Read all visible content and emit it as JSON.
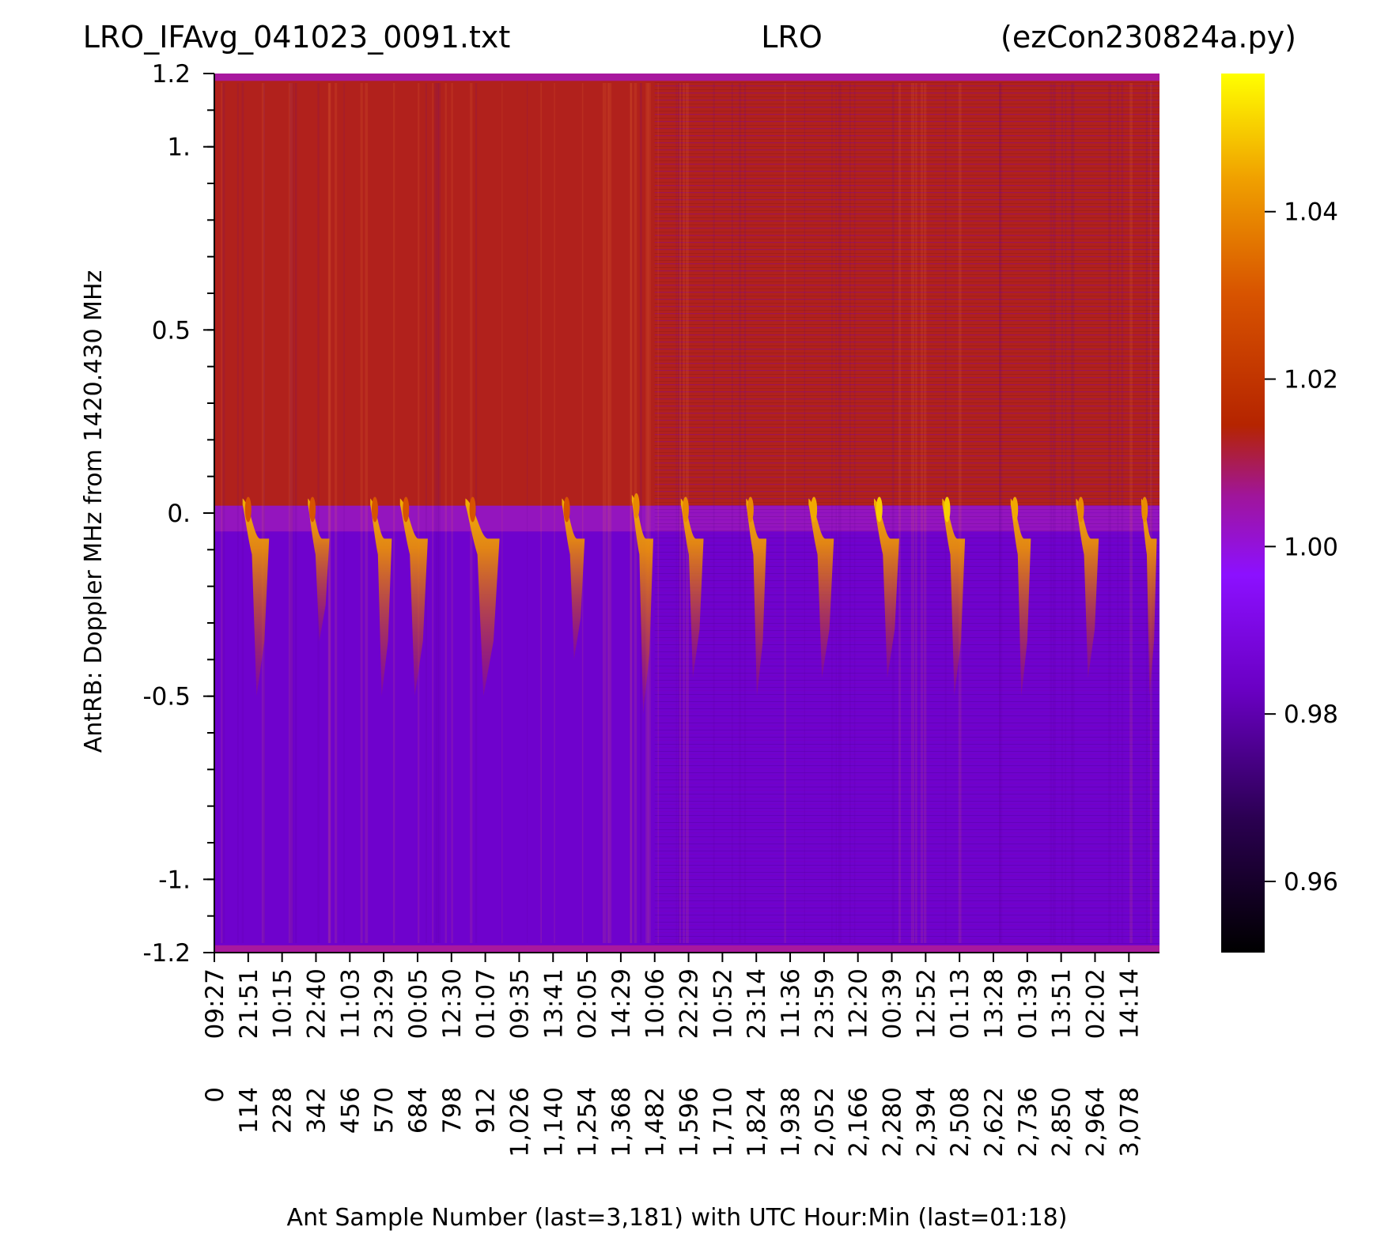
{
  "chart_data": {
    "type": "heatmap",
    "title": {
      "left": "LRO_IFAvg_041023_0091.txt",
      "center": "LRO",
      "right": "(ezCon230824a.py)"
    },
    "xlabel": "Ant Sample Number (last=3,181) with UTC Hour:Min (last=01:18)",
    "ylabel": "AntRB:  Doppler MHz from 1420.430 MHz",
    "xlim": [
      0,
      3181
    ],
    "ylim": [
      -1.2,
      1.2
    ],
    "x_ticks": [
      {
        "sample": "0",
        "time": "09:27"
      },
      {
        "sample": "114",
        "time": "21:51"
      },
      {
        "sample": "228",
        "time": "10:15"
      },
      {
        "sample": "342",
        "time": "22:40"
      },
      {
        "sample": "456",
        "time": "11:03"
      },
      {
        "sample": "570",
        "time": "23:29"
      },
      {
        "sample": "684",
        "time": "00:05"
      },
      {
        "sample": "798",
        "time": "12:30"
      },
      {
        "sample": "912",
        "time": "01:07"
      },
      {
        "sample": "1,026",
        "time": "09:35"
      },
      {
        "sample": "1,140",
        "time": "13:41"
      },
      {
        "sample": "1,254",
        "time": "02:05"
      },
      {
        "sample": "1,368",
        "time": "14:29"
      },
      {
        "sample": "1,482",
        "time": "10:06"
      },
      {
        "sample": "1,596",
        "time": "22:29"
      },
      {
        "sample": "1,710",
        "time": "10:52"
      },
      {
        "sample": "1,824",
        "time": "23:14"
      },
      {
        "sample": "1,938",
        "time": "11:36"
      },
      {
        "sample": "2,052",
        "time": "23:59"
      },
      {
        "sample": "2,166",
        "time": "12:20"
      },
      {
        "sample": "2,280",
        "time": "00:39"
      },
      {
        "sample": "2,394",
        "time": "12:52"
      },
      {
        "sample": "2,508",
        "time": "01:13"
      },
      {
        "sample": "2,622",
        "time": "13:28"
      },
      {
        "sample": "2,736",
        "time": "01:39"
      },
      {
        "sample": "2,850",
        "time": "13:51"
      },
      {
        "sample": "2,964",
        "time": "02:02"
      },
      {
        "sample": "3,078",
        "time": "14:14"
      }
    ],
    "y_ticks": [
      {
        "value": 1.2,
        "label": "1.2"
      },
      {
        "value": 1.0,
        "label": "1."
      },
      {
        "value": 0.5,
        "label": "0.5"
      },
      {
        "value": 0.0,
        "label": "0."
      },
      {
        "value": -0.5,
        "label": "-0.5"
      },
      {
        "value": -1.0,
        "label": "-1."
      },
      {
        "value": -1.2,
        "label": "-1.2"
      }
    ],
    "colorbar": {
      "colormap": "gnuplot",
      "range": [
        0.9515,
        1.0565
      ],
      "ticks": [
        {
          "value": 0.96,
          "label": "0.96"
        },
        {
          "value": 0.98,
          "label": "0.98"
        },
        {
          "value": 1.0,
          "label": "1.00"
        },
        {
          "value": 1.02,
          "label": "1.02"
        },
        {
          "value": 1.04,
          "label": "1.04"
        }
      ]
    },
    "regions": [
      {
        "doppler_range": [
          0.02,
          1.18
        ],
        "typical_value": 1.013
      },
      {
        "doppler_range": [
          -1.18,
          -0.05
        ],
        "typical_value": 0.985
      }
    ],
    "doppler_streaks": [
      {
        "sample_start": 95,
        "sample_end": 200,
        "doppler_top": 0.04,
        "doppler_bottom": -0.5,
        "peak_value": 1.03
      },
      {
        "sample_start": 315,
        "sample_end": 400,
        "doppler_top": 0.04,
        "doppler_bottom": -0.35,
        "peak_value": 1.03
      },
      {
        "sample_start": 525,
        "sample_end": 610,
        "doppler_top": 0.04,
        "doppler_bottom": -0.5,
        "peak_value": 1.03
      },
      {
        "sample_start": 625,
        "sample_end": 735,
        "doppler_top": 0.04,
        "doppler_bottom": -0.5,
        "peak_value": 1.03
      },
      {
        "sample_start": 845,
        "sample_end": 980,
        "doppler_top": 0.04,
        "doppler_bottom": -0.5,
        "peak_value": 1.03
      },
      {
        "sample_start": 1170,
        "sample_end": 1260,
        "doppler_top": 0.04,
        "doppler_bottom": -0.4,
        "peak_value": 1.03
      },
      {
        "sample_start": 1405,
        "sample_end": 1490,
        "doppler_top": 0.05,
        "doppler_bottom": -0.55,
        "peak_value": 1.04
      },
      {
        "sample_start": 1570,
        "sample_end": 1660,
        "doppler_top": 0.04,
        "doppler_bottom": -0.45,
        "peak_value": 1.04
      },
      {
        "sample_start": 1790,
        "sample_end": 1870,
        "doppler_top": 0.04,
        "doppler_bottom": -0.5,
        "peak_value": 1.04
      },
      {
        "sample_start": 2000,
        "sample_end": 2100,
        "doppler_top": 0.04,
        "doppler_bottom": -0.45,
        "peak_value": 1.045
      },
      {
        "sample_start": 2220,
        "sample_end": 2320,
        "doppler_top": 0.04,
        "doppler_bottom": -0.45,
        "peak_value": 1.05
      },
      {
        "sample_start": 2450,
        "sample_end": 2540,
        "doppler_top": 0.04,
        "doppler_bottom": -0.5,
        "peak_value": 1.05
      },
      {
        "sample_start": 2680,
        "sample_end": 2760,
        "doppler_top": 0.04,
        "doppler_bottom": -0.5,
        "peak_value": 1.045
      },
      {
        "sample_start": 2900,
        "sample_end": 2990,
        "doppler_top": 0.04,
        "doppler_bottom": -0.45,
        "peak_value": 1.04
      },
      {
        "sample_start": 3120,
        "sample_end": 3181,
        "doppler_top": 0.04,
        "doppler_bottom": -0.5,
        "peak_value": 1.04
      }
    ]
  }
}
